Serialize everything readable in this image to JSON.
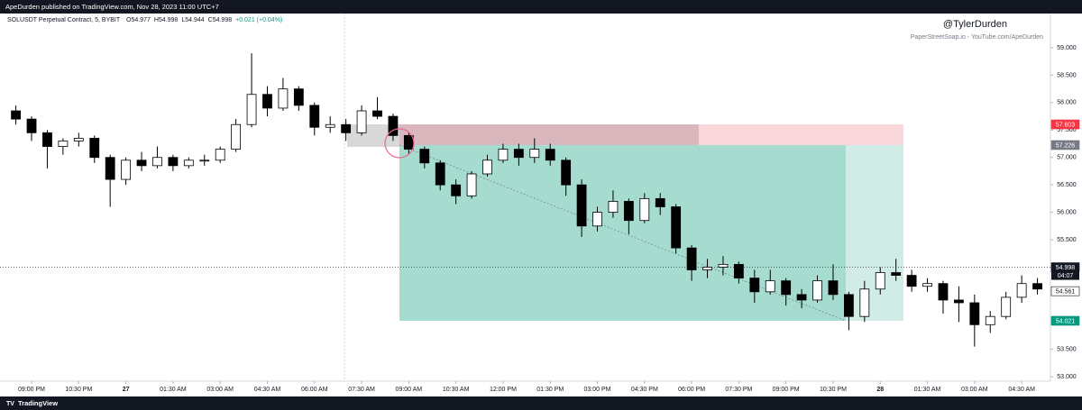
{
  "header": {
    "publisher": "ApeDurden published on TradingView.com, Nov 28, 2023 11:00 UTC+7"
  },
  "footer": {
    "brand": "TradingView"
  },
  "chart_data": {
    "type": "candlestick",
    "title": "SOLUSDT Perpetual Contract, 5, BYBIT",
    "legend_values": [
      "O54.977",
      "H54.998",
      "L54.944",
      "C54.998",
      "+0.021 (+0.04%)"
    ],
    "watermark": "@TylerDurden",
    "watermark_subtitle": "PaperStreetSoap.io - YouTube.com/ApeDurden",
    "categories": [
      null,
      "09:00 PM",
      null,
      null,
      "10:30 PM",
      null,
      null,
      "27",
      null,
      null,
      "01:30 AM",
      null,
      null,
      "03:00 AM",
      null,
      null,
      "04:30 AM",
      null,
      null,
      "06:00 AM",
      null,
      null,
      "07:30 AM",
      null,
      null,
      "09:00 AM",
      null,
      null,
      "10:30 AM",
      null,
      null,
      "12:00 PM",
      null,
      null,
      "01:30 PM",
      null,
      null,
      "03:00 PM",
      null,
      null,
      "04:30 PM",
      null,
      null,
      "06:00 PM",
      null,
      null,
      "07:30 PM",
      null,
      null,
      "09:00 PM",
      null,
      null,
      "10:30 PM",
      null,
      null,
      "28",
      null,
      null,
      "01:30 AM",
      null,
      null,
      "03:00 AM",
      null,
      null,
      "04:30 AM",
      null
    ],
    "open": [
      57.85,
      57.7,
      57.45,
      57.2,
      57.3,
      57.35,
      57.0,
      56.6,
      56.95,
      56.85,
      57.0,
      56.85,
      56.95,
      56.95,
      57.15,
      57.6,
      58.15,
      57.9,
      58.25,
      57.95,
      57.55,
      57.6,
      57.45,
      57.85,
      57.75,
      57.4,
      57.15,
      56.9,
      56.5,
      56.3,
      56.7,
      56.95,
      57.15,
      57.0,
      57.15,
      56.95,
      56.5,
      55.75,
      56.0,
      56.2,
      55.85,
      56.25,
      56.1,
      55.35,
      54.95,
      55.0,
      55.05,
      54.8,
      54.55,
      54.75,
      54.5,
      54.4,
      54.75,
      54.5,
      54.1,
      54.6,
      54.9,
      54.85,
      54.65,
      54.7,
      54.4,
      54.35,
      53.95,
      54.1,
      54.45,
      54.7
    ],
    "high": [
      57.95,
      57.75,
      57.5,
      57.35,
      57.45,
      57.4,
      57.05,
      57.0,
      57.1,
      57.2,
      57.05,
      57.0,
      57.05,
      57.2,
      57.7,
      58.9,
      58.3,
      58.45,
      58.3,
      58.0,
      57.75,
      57.7,
      57.95,
      58.1,
      57.8,
      57.45,
      57.2,
      56.95,
      56.6,
      56.75,
      57.05,
      57.25,
      57.25,
      57.35,
      57.25,
      57.0,
      56.6,
      56.1,
      56.4,
      56.25,
      56.35,
      56.35,
      56.15,
      55.4,
      55.15,
      55.2,
      55.1,
      54.95,
      54.95,
      54.8,
      54.6,
      54.85,
      55.05,
      54.55,
      54.75,
      55.0,
      55.15,
      54.95,
      54.8,
      54.75,
      54.65,
      54.5,
      54.2,
      54.55,
      54.85,
      54.8
    ],
    "low": [
      57.6,
      57.3,
      56.8,
      57.05,
      57.2,
      56.9,
      56.1,
      56.5,
      56.75,
      56.8,
      56.75,
      56.8,
      56.85,
      56.9,
      57.1,
      57.55,
      57.75,
      57.85,
      57.85,
      57.4,
      57.45,
      57.3,
      57.4,
      57.7,
      57.3,
      57.05,
      56.8,
      56.4,
      56.15,
      56.25,
      56.65,
      56.9,
      56.85,
      56.9,
      56.85,
      56.3,
      55.55,
      55.65,
      55.9,
      55.6,
      55.8,
      55.95,
      55.25,
      54.75,
      54.8,
      54.85,
      54.7,
      54.35,
      54.5,
      54.3,
      54.25,
      54.35,
      54.4,
      53.85,
      54.0,
      54.5,
      54.75,
      54.55,
      54.55,
      54.15,
      54.0,
      53.55,
      53.8,
      54.05,
      54.35,
      54.5
    ],
    "close": [
      57.7,
      57.45,
      57.2,
      57.3,
      57.35,
      57.0,
      56.6,
      56.95,
      56.85,
      57.0,
      56.85,
      56.95,
      56.95,
      57.15,
      57.6,
      58.15,
      57.9,
      58.25,
      57.95,
      57.55,
      57.6,
      57.45,
      57.85,
      57.75,
      57.4,
      57.15,
      56.9,
      56.5,
      56.3,
      56.7,
      56.95,
      57.15,
      57.0,
      57.15,
      56.95,
      56.5,
      55.75,
      56.0,
      56.2,
      55.85,
      56.25,
      56.1,
      55.35,
      54.95,
      55.0,
      55.05,
      54.8,
      54.55,
      54.75,
      54.5,
      54.4,
      54.75,
      54.5,
      54.1,
      54.6,
      54.9,
      54.85,
      54.65,
      54.7,
      54.4,
      54.35,
      53.95,
      54.1,
      54.45,
      54.7,
      54.6
    ],
    "up_color": "#ffffff",
    "down_color": "#000000",
    "ylim": [
      52.92,
      59.625
    ],
    "yticks": [
      {
        "value": 53,
        "label": "53.000"
      },
      {
        "value": 53.5,
        "label": "53.500"
      },
      {
        "value": 54,
        "label": "54.000"
      },
      {
        "value": 54.5,
        "label": "54.500"
      },
      {
        "value": 55,
        "label": "55.000"
      },
      {
        "value": 55.5,
        "label": "55.500"
      },
      {
        "value": 56,
        "label": "56.000"
      },
      {
        "value": 56.5,
        "label": "56.500"
      },
      {
        "value": 57,
        "label": "57.000"
      },
      {
        "value": 57.5,
        "label": "57.500"
      },
      {
        "value": 58,
        "label": "58.000"
      },
      {
        "value": 58.5,
        "label": "58.500"
      },
      {
        "value": 59,
        "label": "59.000"
      }
    ],
    "grid": false,
    "position": {
      "stop": 57.603,
      "entry": 57.226,
      "target": 54.021,
      "stop_color": "#f23645",
      "entry_color": "#787b86",
      "target_color": "#089981"
    },
    "price_labels": [
      {
        "value": 54.998,
        "color": "#131722",
        "countdown": "04:07"
      },
      {
        "value": 54.561,
        "color": "#ffffff"
      }
    ]
  }
}
